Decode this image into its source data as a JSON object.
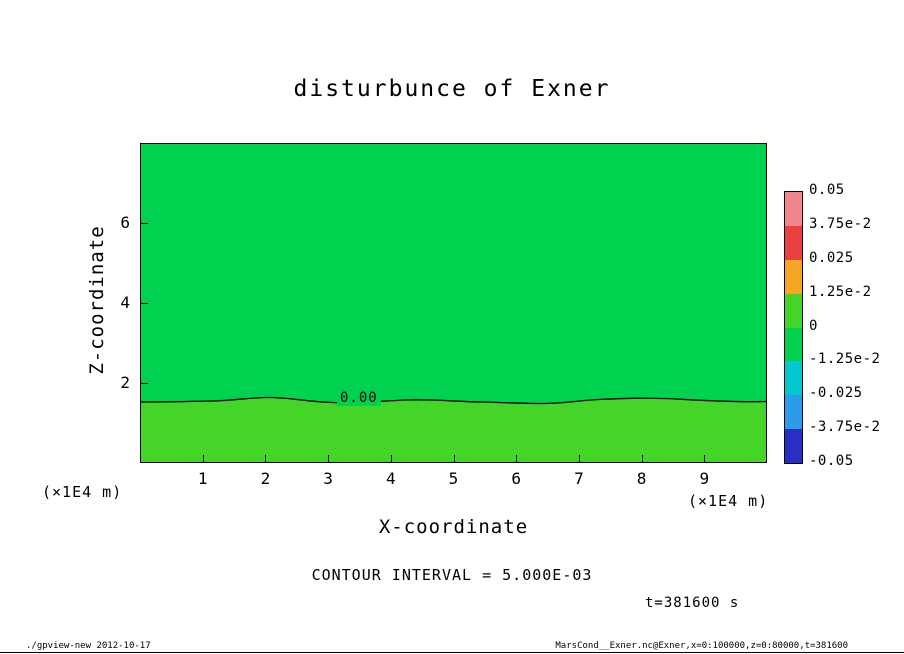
{
  "title": "disturbunce of Exner",
  "plot": {
    "contour_label": "0.00",
    "upper_color": "#00d14e",
    "lower_color": "#45d528",
    "frame_color": "#000000"
  },
  "axes": {
    "x_label": "X-coordinate",
    "y_label": "Z-coordinate",
    "x_unit": "(×1E4 m)",
    "y_unit": "(×1E4 m)",
    "x_ticks": [
      "1",
      "2",
      "3",
      "4",
      "5",
      "6",
      "7",
      "8",
      "9"
    ],
    "y_ticks": [
      "2",
      "4",
      "6"
    ]
  },
  "annotations": {
    "contour_interval": "CONTOUR INTERVAL = 5.000E-03",
    "time": "t=381600 s"
  },
  "colorbar": {
    "labels": [
      "0.05",
      "3.75e-2",
      "0.025",
      "1.25e-2",
      "0",
      "-1.25e-2",
      "-0.025",
      "-3.75e-2",
      "-0.05"
    ],
    "segment_colors": [
      "#f1868f",
      "#e94040",
      "#f5a623",
      "#45d528",
      "#00d14e",
      "#00c9cf",
      "#2b9ce8",
      "#2a2fc4"
    ]
  },
  "footer": {
    "left": "./gpview-new  2012-10-17",
    "right": "MarsCond__Exner.nc@Exner,x=0:100000,z=0:80000,t=381600"
  },
  "chart_data": {
    "type": "heatmap",
    "subtype": "filled-contour-tone-plot",
    "title": "disturbunce of Exner",
    "xlabel": "X-coordinate",
    "ylabel": "Z-coordinate",
    "x_unit": "×1E4 m",
    "y_unit": "×1E4 m",
    "xlim": [
      0,
      10
    ],
    "ylim": [
      0,
      8
    ],
    "x_ticks": [
      1,
      2,
      3,
      4,
      5,
      6,
      7,
      8,
      9
    ],
    "y_ticks": [
      2,
      4,
      6
    ],
    "grid": false,
    "legend_position": "right-colorbar",
    "contour_interval": 0.005,
    "colorbar_range": [
      -0.05,
      0.05
    ],
    "colorbar_tick_values": [
      0.05,
      0.0375,
      0.025,
      0.0125,
      0,
      -0.0125,
      -0.025,
      -0.0375,
      -0.05
    ],
    "visible_contours": [
      {
        "level": 0.0,
        "label": "0.00",
        "shape": "nearly flat horizontal line with small undulations",
        "z_mean": 1.5,
        "x_z_points": [
          [
            0,
            1.53
          ],
          [
            1,
            1.56
          ],
          [
            2,
            1.64
          ],
          [
            3,
            1.53
          ],
          [
            4,
            1.56
          ],
          [
            5,
            1.55
          ],
          [
            6,
            1.51
          ],
          [
            6.5,
            1.51
          ],
          [
            7.3,
            1.6
          ],
          [
            8.5,
            1.64
          ],
          [
            9.3,
            1.6
          ],
          [
            10,
            1.55
          ]
        ]
      }
    ],
    "field_bands": [
      {
        "region": "z above zero contour (z > ~1.5)",
        "value_band": [
          -0.0125,
          0
        ],
        "color": "#00d14e"
      },
      {
        "region": "z below zero contour (z < ~1.5)",
        "value_band": [
          0,
          0.0125
        ],
        "color": "#45d528"
      }
    ],
    "time": "t=381600 s"
  }
}
